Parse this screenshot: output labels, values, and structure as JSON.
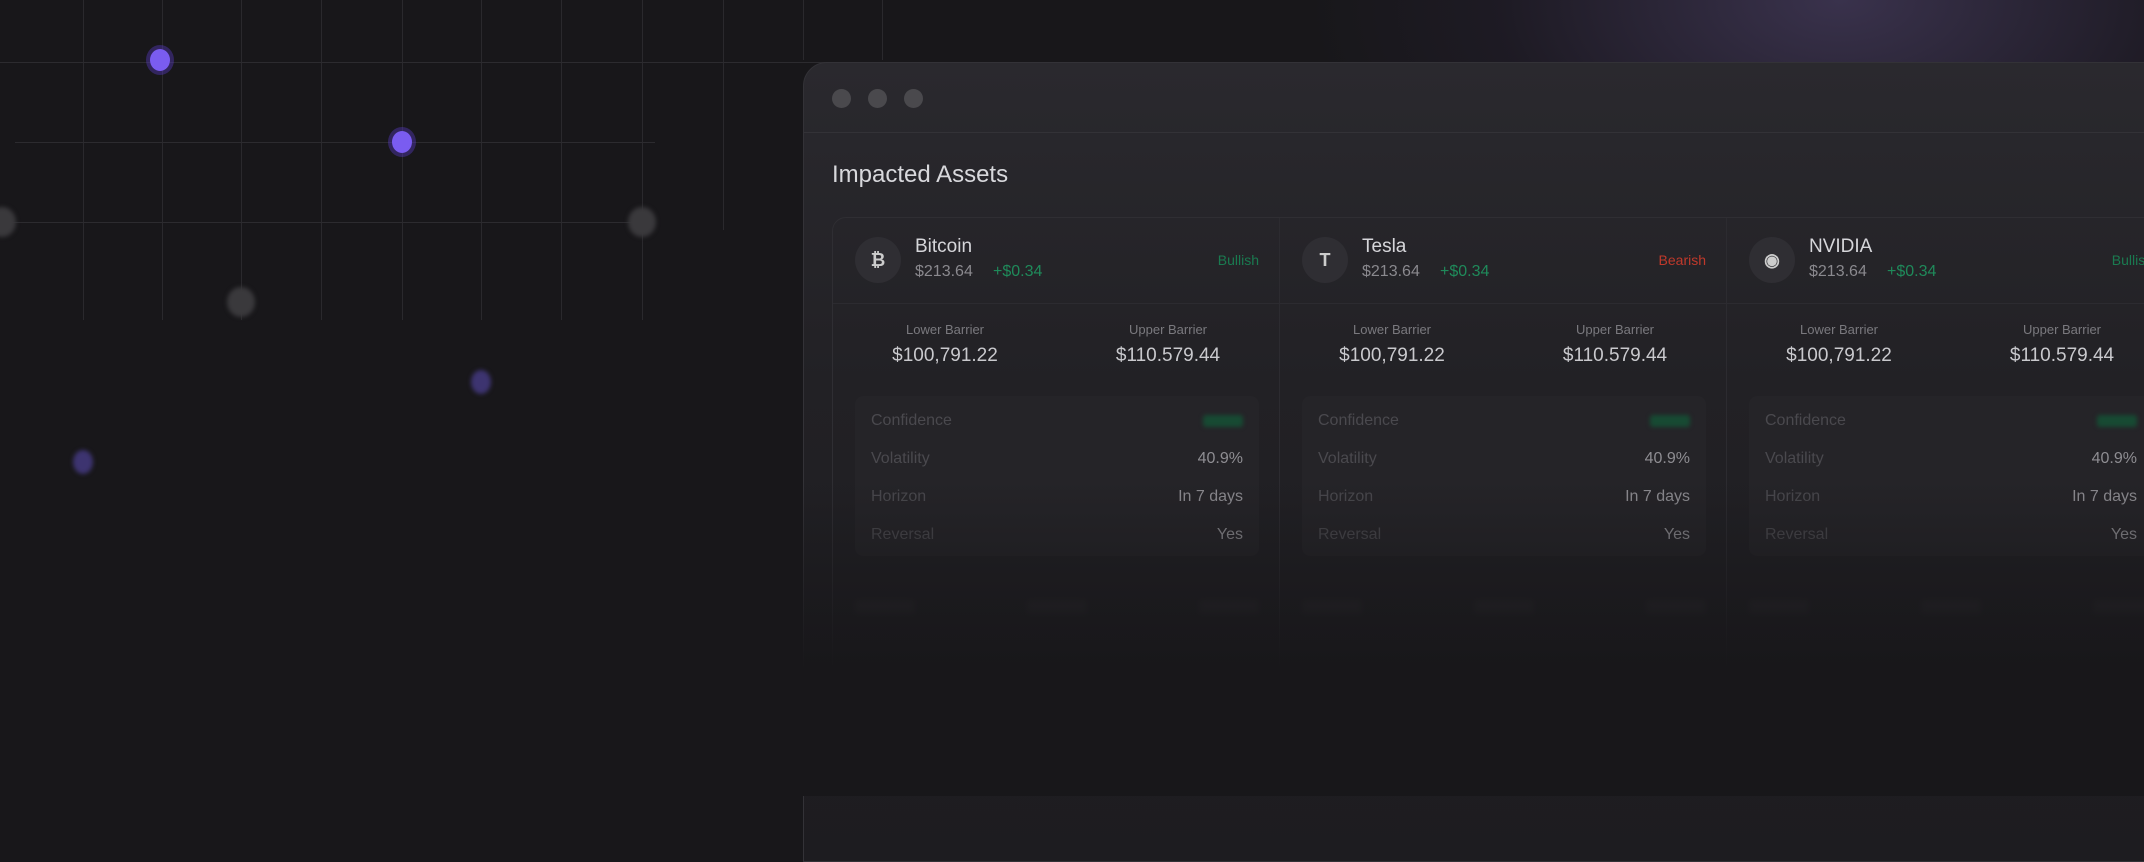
{
  "window": {
    "title": "Impacted Assets"
  },
  "colors": {
    "accent": "#7a5cf0",
    "bullish": "#1a7a50",
    "bearish": "#c0392b",
    "positive": "#1f8a5a"
  },
  "assets": [
    {
      "name": "Bitcoin",
      "icon": "bitcoin-icon",
      "glyph": "₿",
      "price": "$213.64",
      "change": "+$0.34",
      "sentiment": "Bullish",
      "lower_label": "Lower Barrier",
      "lower": "$100,791.22",
      "upper_label": "Upper Barrier",
      "upper": "$110.579.44",
      "stats": [
        {
          "k": "Confidence",
          "v": ""
        },
        {
          "k": "Volatility",
          "v": "40.9%"
        },
        {
          "k": "Horizon",
          "v": "In 7 days"
        },
        {
          "k": "Reversal",
          "v": "Yes"
        }
      ]
    },
    {
      "name": "Tesla",
      "icon": "tesla-icon",
      "glyph": "T",
      "price": "$213.64",
      "change": "+$0.34",
      "sentiment": "Bearish",
      "lower_label": "Lower Barrier",
      "lower": "$100,791.22",
      "upper_label": "Upper Barrier",
      "upper": "$110.579.44",
      "stats": [
        {
          "k": "Confidence",
          "v": ""
        },
        {
          "k": "Volatility",
          "v": "40.9%"
        },
        {
          "k": "Horizon",
          "v": "In 7 days"
        },
        {
          "k": "Reversal",
          "v": "Yes"
        }
      ]
    },
    {
      "name": "NVIDIA",
      "icon": "nvidia-icon",
      "glyph": "◉",
      "price": "$213.64",
      "change": "+$0.34",
      "sentiment": "Bullish",
      "lower_label": "Lower Barrier",
      "lower": "$100,791.22",
      "upper_label": "Upper Barrier",
      "upper": "$110.579.44",
      "stats": [
        {
          "k": "Confidence",
          "v": ""
        },
        {
          "k": "Volatility",
          "v": "40.9%"
        },
        {
          "k": "Horizon",
          "v": "In 7 days"
        },
        {
          "k": "Reversal",
          "v": "Yes"
        }
      ]
    }
  ]
}
